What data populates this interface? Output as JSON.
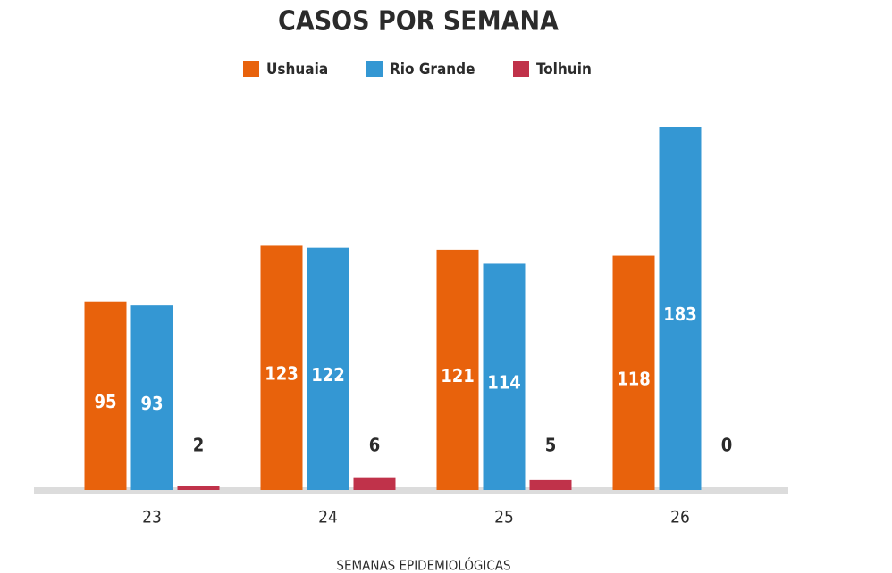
{
  "chart_data": {
    "type": "bar",
    "title": "CASOS POR SEMANA",
    "x_label": "SEMANAS EPIDEMIOLÓGICAS",
    "categories": [
      "23",
      "24",
      "25",
      "26"
    ],
    "series": [
      {
        "name": "Ushuaia",
        "color": "#e8620c",
        "values": [
          95,
          123,
          121,
          118
        ]
      },
      {
        "name": "Rio Grande",
        "color": "#3497d3",
        "values": [
          93,
          122,
          114,
          183
        ]
      },
      {
        "name": "Tolhuin",
        "color": "#c0324a",
        "values": [
          2,
          6,
          5,
          0
        ]
      }
    ]
  }
}
